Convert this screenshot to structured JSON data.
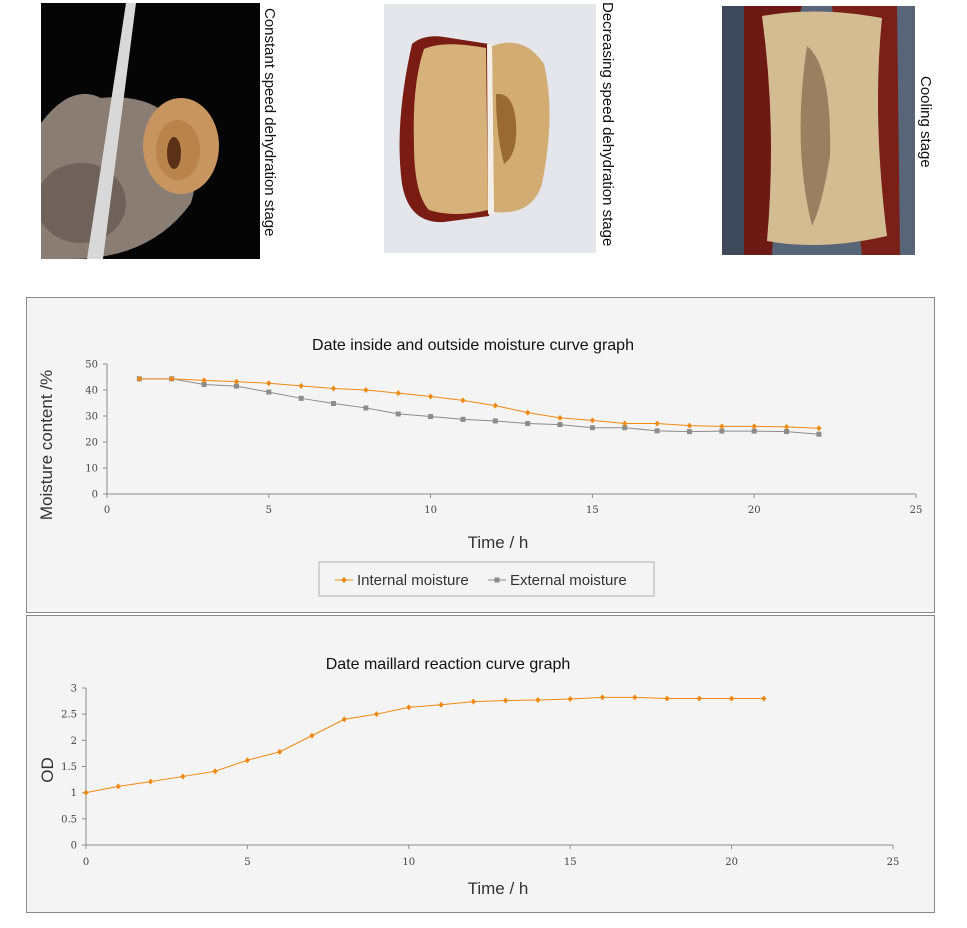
{
  "photos": [
    {
      "caption": "Constant speed dehydration stage"
    },
    {
      "caption": "Decreasing speed dehydration stage"
    },
    {
      "caption": "Cooling stage"
    }
  ],
  "colors": {
    "internal": "#ee8a14",
    "external": "#8c8c8c",
    "axis": "#8c8c8c"
  },
  "chart_data": [
    {
      "type": "line",
      "title": "Date inside and outside moisture curve graph",
      "xlabel": "Time / h",
      "ylabel": "Moisture content /%",
      "xlim": [
        0,
        25
      ],
      "ylim": [
        0,
        50
      ],
      "x_ticks": [
        0,
        5,
        10,
        15,
        20,
        25
      ],
      "y_ticks": [
        0,
        10,
        20,
        30,
        40,
        50
      ],
      "grid": false,
      "legend": "bottom",
      "x": [
        1,
        2,
        3,
        4,
        5,
        6,
        7,
        8,
        9,
        10,
        11,
        12,
        13,
        14,
        15,
        16,
        17,
        18,
        19,
        20,
        21,
        22
      ],
      "series": [
        {
          "name": "Internal moisture",
          "marker": "diamond",
          "values": [
            44.3,
            44.3,
            43.7,
            43.2,
            42.6,
            41.6,
            40.6,
            40.0,
            38.8,
            37.5,
            36.0,
            34.0,
            31.3,
            29.3,
            28.3,
            27.1,
            27.1,
            26.3,
            26.0,
            26.0,
            25.8,
            25.3
          ]
        },
        {
          "name": "External moisture",
          "marker": "square",
          "values": [
            44.3,
            44.3,
            42.1,
            41.5,
            39.2,
            36.8,
            34.8,
            33.1,
            30.8,
            29.8,
            28.7,
            28.1,
            27.1,
            26.7,
            25.5,
            25.5,
            24.3,
            24.0,
            24.2,
            24.2,
            24.0,
            23.0
          ]
        }
      ]
    },
    {
      "type": "line",
      "title": "Date maillard reaction curve graph",
      "xlabel": "Time / h",
      "ylabel": "OD",
      "xlim": [
        0,
        25
      ],
      "ylim": [
        0,
        3
      ],
      "x_ticks": [
        0,
        5,
        10,
        15,
        20,
        25
      ],
      "y_ticks": [
        "0",
        "0.5",
        "1",
        "1.5",
        "2",
        "2.5",
        "3"
      ],
      "grid": false,
      "x": [
        0,
        1,
        2,
        3,
        4,
        5,
        6,
        7,
        8,
        9,
        10,
        11,
        12,
        13,
        14,
        15,
        16,
        17,
        18,
        19,
        20,
        21
      ],
      "series": [
        {
          "marker": "diamond",
          "values": [
            1.0,
            1.12,
            1.21,
            1.31,
            1.41,
            1.62,
            1.78,
            2.09,
            2.4,
            2.5,
            2.63,
            2.68,
            2.74,
            2.76,
            2.77,
            2.79,
            2.82,
            2.82,
            2.8,
            2.8,
            2.8,
            2.8
          ]
        }
      ]
    }
  ]
}
